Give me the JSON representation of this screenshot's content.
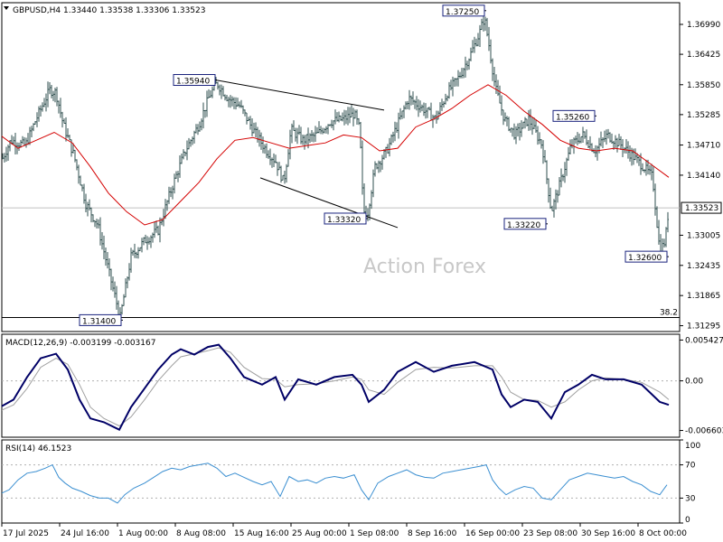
{
  "instrument_header": "GBPUSD,H4  1.33440 1.33538 1.33306 1.33523",
  "watermark": "Action Forex",
  "colors": {
    "bar": "#2f4f4f",
    "ma": "#d40000",
    "macd_main": "#000066",
    "macd_signal": "#a0a0a0",
    "rsi": "#3b8fd1",
    "grid": "#b0b0b0",
    "current": "#c0c0c0"
  },
  "chart_data": [
    {
      "type": "line",
      "panel": "price",
      "title": "GBPUSD,H4  1.33440 1.33538 1.33306 1.33523",
      "ylim": [
        1.31185,
        1.374
      ],
      "yticks": [
        "1.36990",
        "1.36425",
        "1.35850",
        "1.35285",
        "1.34710",
        "1.34140",
        "1.33005",
        "1.32435",
        "1.31865",
        "1.31295"
      ],
      "current_price": "1.33523",
      "fib_label": "38.2",
      "fib_level": 1.3145,
      "price_path": [
        [
          0,
          1.3435
        ],
        [
          12,
          1.348
        ],
        [
          28,
          1.347
        ],
        [
          40,
          1.352
        ],
        [
          55,
          1.3575
        ],
        [
          62,
          1.357
        ],
        [
          70,
          1.351
        ],
        [
          82,
          1.345
        ],
        [
          95,
          1.336
        ],
        [
          108,
          1.332
        ],
        [
          122,
          1.322
        ],
        [
          133,
          1.3145
        ],
        [
          145,
          1.326
        ],
        [
          160,
          1.329
        ],
        [
          175,
          1.331
        ],
        [
          190,
          1.339
        ],
        [
          205,
          1.346
        ],
        [
          220,
          1.351
        ],
        [
          232,
          1.3565
        ],
        [
          240,
          1.3588
        ],
        [
          252,
          1.356
        ],
        [
          265,
          1.3545
        ],
        [
          280,
          1.35
        ],
        [
          295,
          1.346
        ],
        [
          305,
          1.344
        ],
        [
          314,
          1.34
        ],
        [
          322,
          1.35
        ],
        [
          335,
          1.348
        ],
        [
          350,
          1.349
        ],
        [
          365,
          1.3515
        ],
        [
          380,
          1.352
        ],
        [
          392,
          1.353
        ],
        [
          398,
          1.35
        ],
        [
          402,
          1.3345
        ],
        [
          407,
          1.3345
        ],
        [
          415,
          1.343
        ],
        [
          428,
          1.346
        ],
        [
          440,
          1.351
        ],
        [
          452,
          1.356
        ],
        [
          468,
          1.354
        ],
        [
          482,
          1.352
        ],
        [
          495,
          1.357
        ],
        [
          508,
          1.36
        ],
        [
          520,
          1.364
        ],
        [
          530,
          1.368
        ],
        [
          536,
          1.3712
        ],
        [
          541,
          1.366
        ],
        [
          548,
          1.358
        ],
        [
          558,
          1.352
        ],
        [
          570,
          1.349
        ],
        [
          585,
          1.352
        ],
        [
          600,
          1.347
        ],
        [
          610,
          1.3345
        ],
        [
          620,
          1.34
        ],
        [
          632,
          1.347
        ],
        [
          645,
          1.349
        ],
        [
          658,
          1.346
        ],
        [
          672,
          1.349
        ],
        [
          688,
          1.347
        ],
        [
          700,
          1.345
        ],
        [
          712,
          1.343
        ],
        [
          722,
          1.341
        ],
        [
          730,
          1.327
        ],
        [
          736,
          1.329
        ],
        [
          740,
          1.3352
        ]
      ],
      "ma_path": [
        [
          0,
          1.349
        ],
        [
          20,
          1.3465
        ],
        [
          40,
          1.348
        ],
        [
          60,
          1.3495
        ],
        [
          80,
          1.3475
        ],
        [
          100,
          1.343
        ],
        [
          120,
          1.338
        ],
        [
          140,
          1.3345
        ],
        [
          160,
          1.332
        ],
        [
          180,
          1.333
        ],
        [
          200,
          1.3365
        ],
        [
          220,
          1.34
        ],
        [
          240,
          1.3445
        ],
        [
          260,
          1.348
        ],
        [
          280,
          1.3485
        ],
        [
          300,
          1.3475
        ],
        [
          320,
          1.3465
        ],
        [
          340,
          1.347
        ],
        [
          360,
          1.3475
        ],
        [
          380,
          1.349
        ],
        [
          400,
          1.3485
        ],
        [
          420,
          1.346
        ],
        [
          440,
          1.3465
        ],
        [
          460,
          1.3505
        ],
        [
          480,
          1.352
        ],
        [
          500,
          1.354
        ],
        [
          520,
          1.3565
        ],
        [
          540,
          1.3585
        ],
        [
          560,
          1.3565
        ],
        [
          580,
          1.3535
        ],
        [
          600,
          1.351
        ],
        [
          620,
          1.348
        ],
        [
          640,
          1.3465
        ],
        [
          660,
          1.346
        ],
        [
          680,
          1.3465
        ],
        [
          700,
          1.346
        ],
        [
          720,
          1.3435
        ],
        [
          740,
          1.341
        ]
      ],
      "trendlines": [
        [
          [
            238,
            1.3594
          ],
          [
            425,
            1.3537
          ]
        ],
        [
          [
            288,
            1.3409
          ],
          [
            440,
            1.3315
          ]
        ]
      ],
      "annotations": [
        {
          "text": "1.37250",
          "x": 536,
          "y": 1.3725,
          "align": "right"
        },
        {
          "text": "1.35940",
          "x": 238,
          "y": 1.3594,
          "align": "right"
        },
        {
          "text": "1.35260",
          "x": 658,
          "y": 1.3526,
          "align": "right"
        },
        {
          "text": "1.33320",
          "x": 405,
          "y": 1.3332,
          "align": "right"
        },
        {
          "text": "1.33220",
          "x": 604,
          "y": 1.3322,
          "align": "right"
        },
        {
          "text": "1.32600",
          "x": 738,
          "y": 1.326,
          "align": "right"
        },
        {
          "text": "1.31400",
          "x": 134,
          "y": 1.314,
          "align": "right"
        }
      ]
    },
    {
      "type": "line",
      "panel": "macd",
      "title": "MACD(12,26,9) -0.003199 -0.003167",
      "ylim": [
        -0.0075,
        0.0062
      ],
      "yticks": [
        "0.005427",
        "0.00",
        "-0.006603"
      ],
      "main_path": [
        [
          0,
          -0.0035
        ],
        [
          15,
          -0.0025
        ],
        [
          30,
          0.0005
        ],
        [
          45,
          0.003
        ],
        [
          62,
          0.0036
        ],
        [
          75,
          0.0015
        ],
        [
          88,
          -0.0025
        ],
        [
          100,
          -0.005
        ],
        [
          115,
          -0.0055
        ],
        [
          132,
          -0.0065
        ],
        [
          145,
          -0.0035
        ],
        [
          160,
          -0.001
        ],
        [
          175,
          0.0015
        ],
        [
          190,
          0.0035
        ],
        [
          200,
          0.0042
        ],
        [
          215,
          0.0035
        ],
        [
          230,
          0.0045
        ],
        [
          242,
          0.0048
        ],
        [
          255,
          0.003
        ],
        [
          270,
          0.0005
        ],
        [
          290,
          -0.0005
        ],
        [
          305,
          0.0005
        ],
        [
          315,
          -0.0025
        ],
        [
          330,
          0.0002
        ],
        [
          350,
          -0.0005
        ],
        [
          370,
          0.0005
        ],
        [
          390,
          0.0008
        ],
        [
          400,
          -0.0005
        ],
        [
          408,
          -0.0028
        ],
        [
          425,
          -0.0012
        ],
        [
          440,
          0.0012
        ],
        [
          460,
          0.0025
        ],
        [
          480,
          0.0012
        ],
        [
          500,
          0.002
        ],
        [
          525,
          0.0025
        ],
        [
          545,
          0.0015
        ],
        [
          555,
          -0.0018
        ],
        [
          565,
          -0.0035
        ],
        [
          580,
          -0.0025
        ],
        [
          595,
          -0.0028
        ],
        [
          610,
          -0.005
        ],
        [
          625,
          -0.0015
        ],
        [
          640,
          -0.0005
        ],
        [
          655,
          0.0008
        ],
        [
          670,
          0.0002
        ],
        [
          690,
          0.0002
        ],
        [
          710,
          -0.0005
        ],
        [
          730,
          -0.0028
        ],
        [
          740,
          -0.0032
        ]
      ],
      "signal_path": [
        [
          0,
          -0.004
        ],
        [
          15,
          -0.0032
        ],
        [
          30,
          -0.001
        ],
        [
          45,
          0.0018
        ],
        [
          62,
          0.003
        ],
        [
          75,
          0.0022
        ],
        [
          88,
          -0.0005
        ],
        [
          100,
          -0.0035
        ],
        [
          115,
          -0.005
        ],
        [
          132,
          -0.006
        ],
        [
          145,
          -0.0048
        ],
        [
          160,
          -0.0025
        ],
        [
          175,
          0.0
        ],
        [
          190,
          0.002
        ],
        [
          200,
          0.0032
        ],
        [
          215,
          0.0036
        ],
        [
          230,
          0.004
        ],
        [
          242,
          0.0044
        ],
        [
          255,
          0.0038
        ],
        [
          270,
          0.0018
        ],
        [
          290,
          0.0003
        ],
        [
          305,
          0.0002
        ],
        [
          315,
          -0.0008
        ],
        [
          330,
          -0.0005
        ],
        [
          350,
          -0.0004
        ],
        [
          370,
          0.0
        ],
        [
          390,
          0.0005
        ],
        [
          400,
          0.0002
        ],
        [
          408,
          -0.0012
        ],
        [
          425,
          -0.0018
        ],
        [
          440,
          -0.0002
        ],
        [
          460,
          0.0015
        ],
        [
          480,
          0.0018
        ],
        [
          500,
          0.0017
        ],
        [
          525,
          0.002
        ],
        [
          545,
          0.002
        ],
        [
          555,
          0.0005
        ],
        [
          565,
          -0.0015
        ],
        [
          580,
          -0.0025
        ],
        [
          595,
          -0.0026
        ],
        [
          610,
          -0.0035
        ],
        [
          625,
          -0.0028
        ],
        [
          640,
          -0.0012
        ],
        [
          655,
          0.0
        ],
        [
          670,
          0.0004
        ],
        [
          690,
          0.0002
        ],
        [
          710,
          -0.0002
        ],
        [
          730,
          -0.0015
        ],
        [
          740,
          -0.0025
        ]
      ]
    },
    {
      "type": "line",
      "panel": "rsi",
      "title": "RSI(14) 46.1523",
      "ylim": [
        0,
        100
      ],
      "yticks": [
        "100",
        "70",
        "30",
        "0"
      ],
      "levels": [
        70,
        30
      ],
      "rsi_path": [
        [
          0,
          35
        ],
        [
          10,
          40
        ],
        [
          20,
          52
        ],
        [
          30,
          60
        ],
        [
          40,
          62
        ],
        [
          50,
          66
        ],
        [
          58,
          70
        ],
        [
          65,
          55
        ],
        [
          72,
          48
        ],
        [
          80,
          42
        ],
        [
          90,
          38
        ],
        [
          100,
          33
        ],
        [
          110,
          30
        ],
        [
          120,
          30
        ],
        [
          130,
          24
        ],
        [
          138,
          34
        ],
        [
          148,
          42
        ],
        [
          160,
          48
        ],
        [
          170,
          55
        ],
        [
          180,
          62
        ],
        [
          190,
          66
        ],
        [
          200,
          64
        ],
        [
          210,
          68
        ],
        [
          220,
          70
        ],
        [
          230,
          72
        ],
        [
          240,
          66
        ],
        [
          250,
          56
        ],
        [
          260,
          60
        ],
        [
          270,
          55
        ],
        [
          280,
          50
        ],
        [
          290,
          46
        ],
        [
          300,
          50
        ],
        [
          310,
          32
        ],
        [
          320,
          56
        ],
        [
          330,
          50
        ],
        [
          340,
          52
        ],
        [
          350,
          48
        ],
        [
          360,
          54
        ],
        [
          370,
          56
        ],
        [
          380,
          54
        ],
        [
          392,
          58
        ],
        [
          400,
          40
        ],
        [
          408,
          28
        ],
        [
          418,
          48
        ],
        [
          430,
          56
        ],
        [
          440,
          60
        ],
        [
          450,
          64
        ],
        [
          460,
          58
        ],
        [
          470,
          55
        ],
        [
          480,
          54
        ],
        [
          490,
          60
        ],
        [
          500,
          62
        ],
        [
          510,
          64
        ],
        [
          520,
          66
        ],
        [
          530,
          68
        ],
        [
          538,
          70
        ],
        [
          545,
          52
        ],
        [
          552,
          42
        ],
        [
          560,
          34
        ],
        [
          570,
          40
        ],
        [
          580,
          44
        ],
        [
          590,
          42
        ],
        [
          600,
          30
        ],
        [
          610,
          28
        ],
        [
          620,
          40
        ],
        [
          630,
          52
        ],
        [
          640,
          56
        ],
        [
          650,
          60
        ],
        [
          660,
          58
        ],
        [
          670,
          56
        ],
        [
          680,
          54
        ],
        [
          690,
          56
        ],
        [
          700,
          50
        ],
        [
          710,
          46
        ],
        [
          720,
          38
        ],
        [
          730,
          34
        ],
        [
          738,
          46
        ]
      ]
    }
  ],
  "x_axis_labels": [
    {
      "text": "17 Jul 2025",
      "x": 2
    },
    {
      "text": "24 Jul 16:00",
      "x": 66
    },
    {
      "text": "1 Aug 00:00",
      "x": 130
    },
    {
      "text": "8 Aug 08:00",
      "x": 194
    },
    {
      "text": "15 Aug 16:00",
      "x": 258
    },
    {
      "text": "25 Aug 00:00",
      "x": 322
    },
    {
      "text": "1 Sep 08:00",
      "x": 386
    },
    {
      "text": "8 Sep 16:00",
      "x": 450
    },
    {
      "text": "16 Sep 00:00",
      "x": 514
    },
    {
      "text": "23 Sep 08:00",
      "x": 578
    },
    {
      "text": "30 Sep 16:00",
      "x": 642
    },
    {
      "text": "8 Oct 00:00",
      "x": 706
    }
  ]
}
